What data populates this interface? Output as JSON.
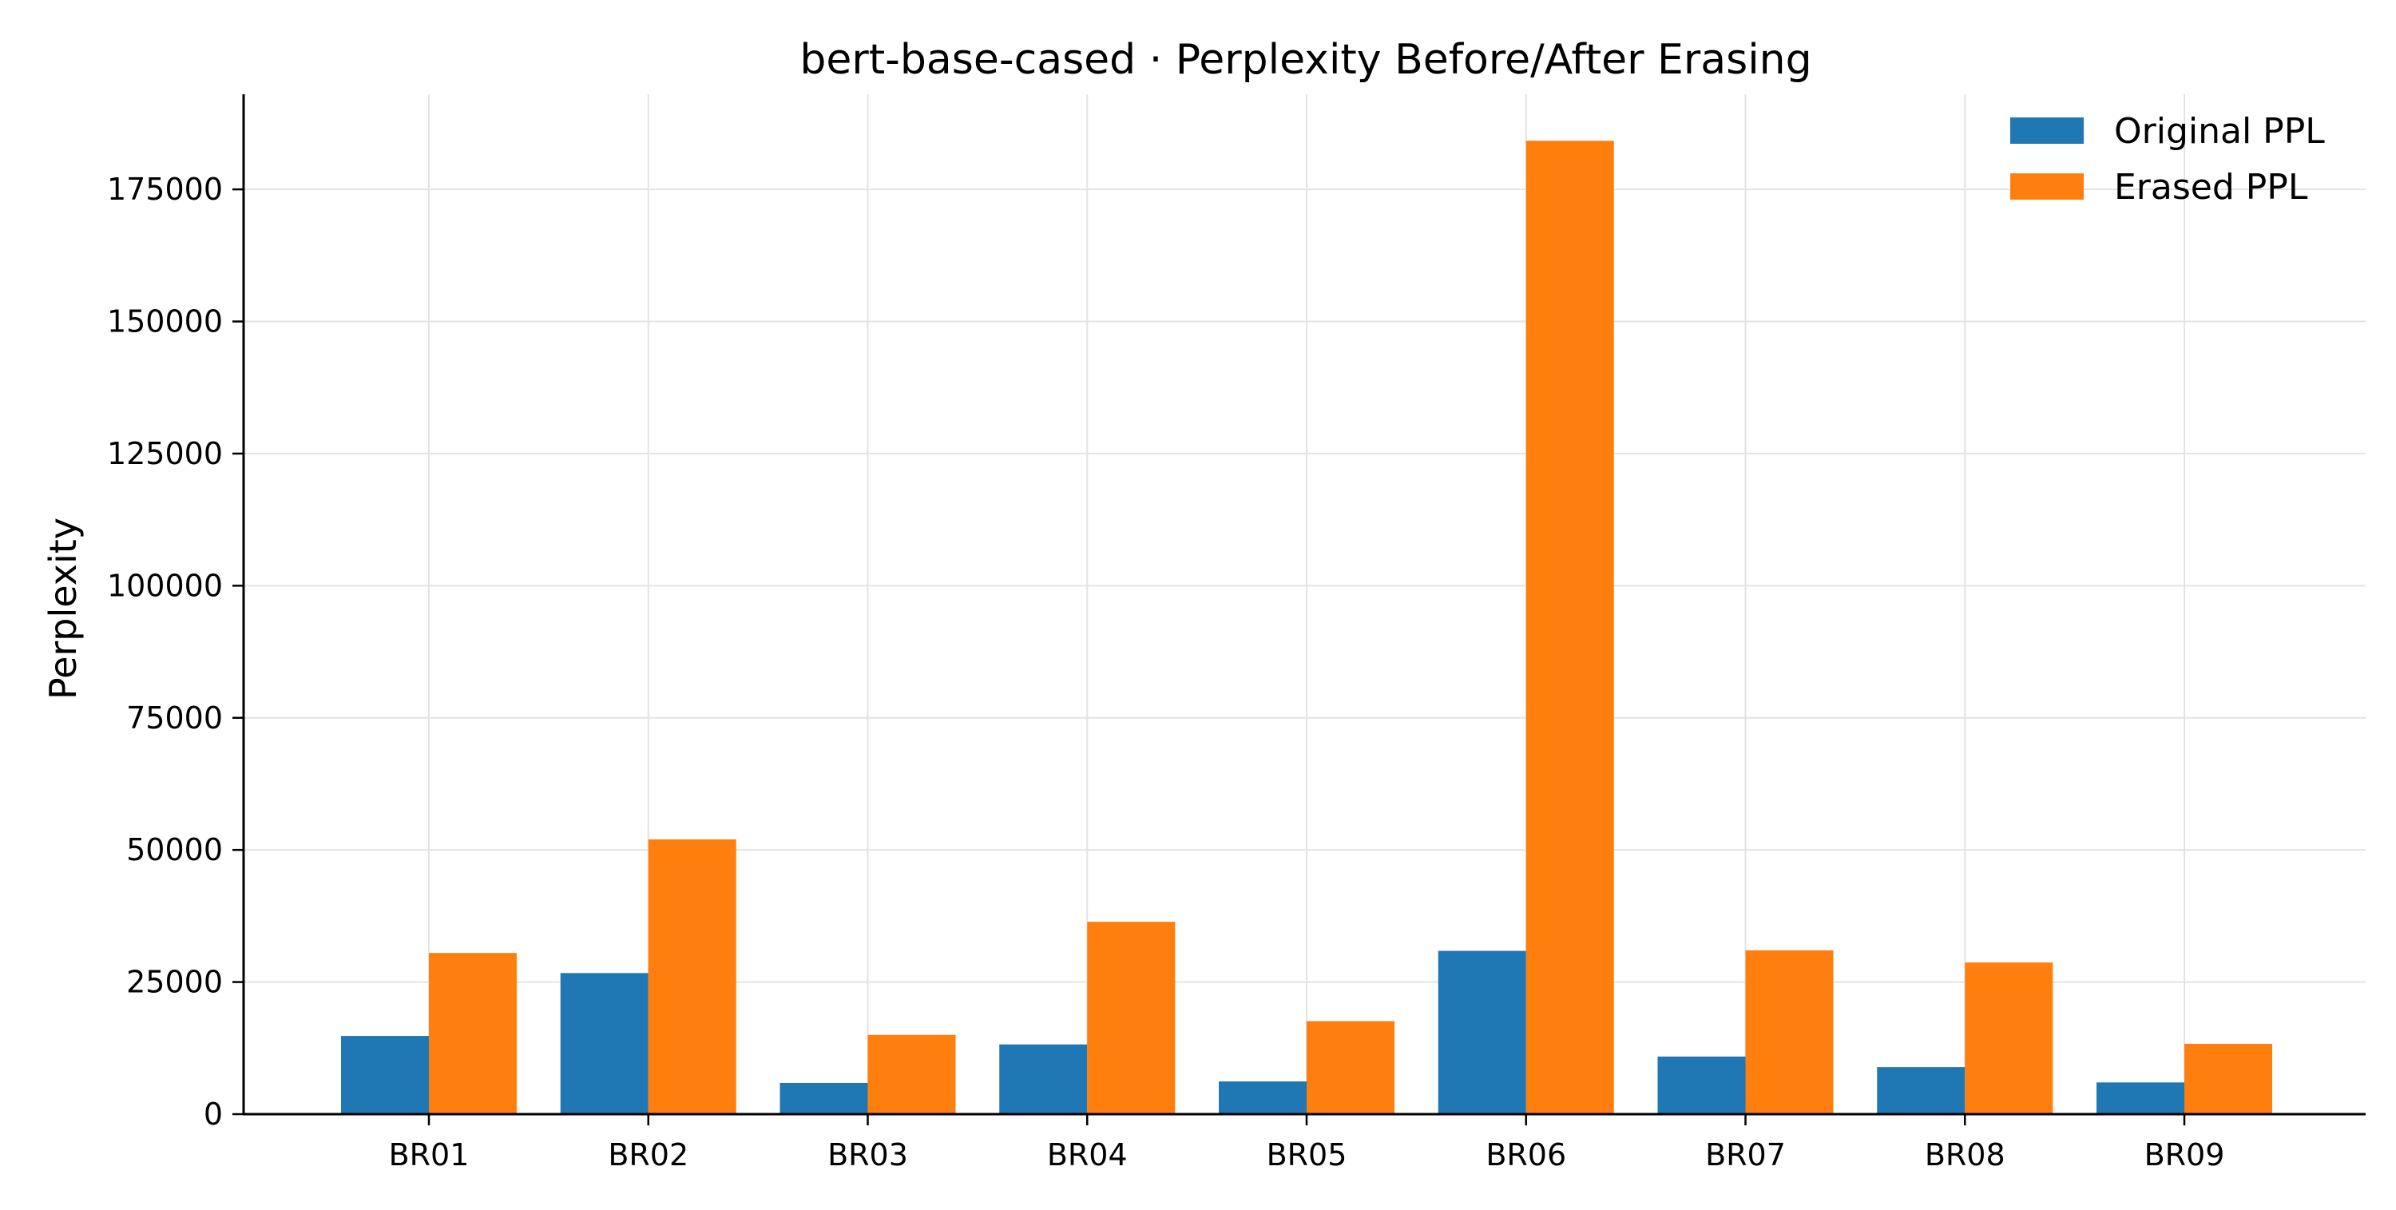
{
  "chart_data": {
    "type": "bar",
    "title": "bert-base-cased · Perplexity Before/After Erasing",
    "xlabel": "",
    "ylabel": "Perplexity",
    "categories": [
      "BR01",
      "BR02",
      "BR03",
      "BR04",
      "BR05",
      "BR06",
      "BR07",
      "BR08",
      "BR09"
    ],
    "series": [
      {
        "name": "Original PPL",
        "color": "#1f77b4",
        "values": [
          14800,
          26700,
          5900,
          13200,
          6200,
          30900,
          10900,
          8900,
          6000
        ]
      },
      {
        "name": "Erased PPL",
        "color": "#ff7f0e",
        "values": [
          30500,
          52000,
          15000,
          36400,
          17600,
          184200,
          31000,
          28700,
          13300
        ]
      }
    ],
    "ylim": [
      0,
      193000
    ],
    "yticks": [
      0,
      25000,
      50000,
      75000,
      100000,
      125000,
      150000,
      175000
    ],
    "grid": true,
    "legend_position": "top-right"
  }
}
